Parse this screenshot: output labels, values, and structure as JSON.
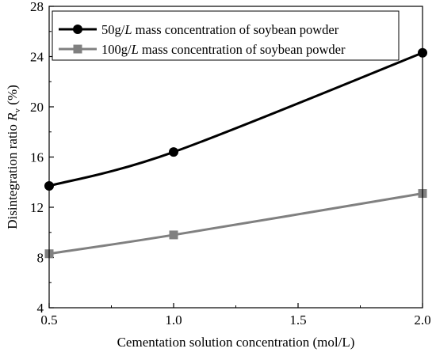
{
  "chart_data": {
    "type": "line",
    "title": "",
    "xlabel": "Cementation solution concentration (mol/L)",
    "ylabel": {
      "main": "Disintegration ratio ",
      "symbol": "R",
      "subscript": "v",
      "unit": " (%)"
    },
    "xlim": [
      0.5,
      2.0
    ],
    "ylim": [
      4,
      28
    ],
    "xticks": [
      "0.5",
      "1.0",
      "1.5",
      "2.0"
    ],
    "yticks": [
      "4",
      "8",
      "12",
      "16",
      "20",
      "24",
      "28"
    ],
    "grid": false,
    "legend_position": "top-right",
    "series": [
      {
        "name": "50g/L mass concentration of soybean powder",
        "name_parts": {
          "before": "50g/",
          "italic": "L",
          "after": " mass concentration of soybean powder"
        },
        "marker": "circle",
        "color": "#000000",
        "x": [
          0.5,
          1.0,
          2.0
        ],
        "y": [
          13.7,
          16.4,
          24.3
        ]
      },
      {
        "name": "100g/L mass concentration of soybean powder",
        "name_parts": {
          "before": "100g/",
          "italic": "L",
          "after": " mass concentration of soybean powder"
        },
        "marker": "square",
        "color": "#808080",
        "x": [
          0.5,
          1.0,
          2.0
        ],
        "y": [
          8.3,
          9.8,
          13.1
        ]
      }
    ]
  }
}
